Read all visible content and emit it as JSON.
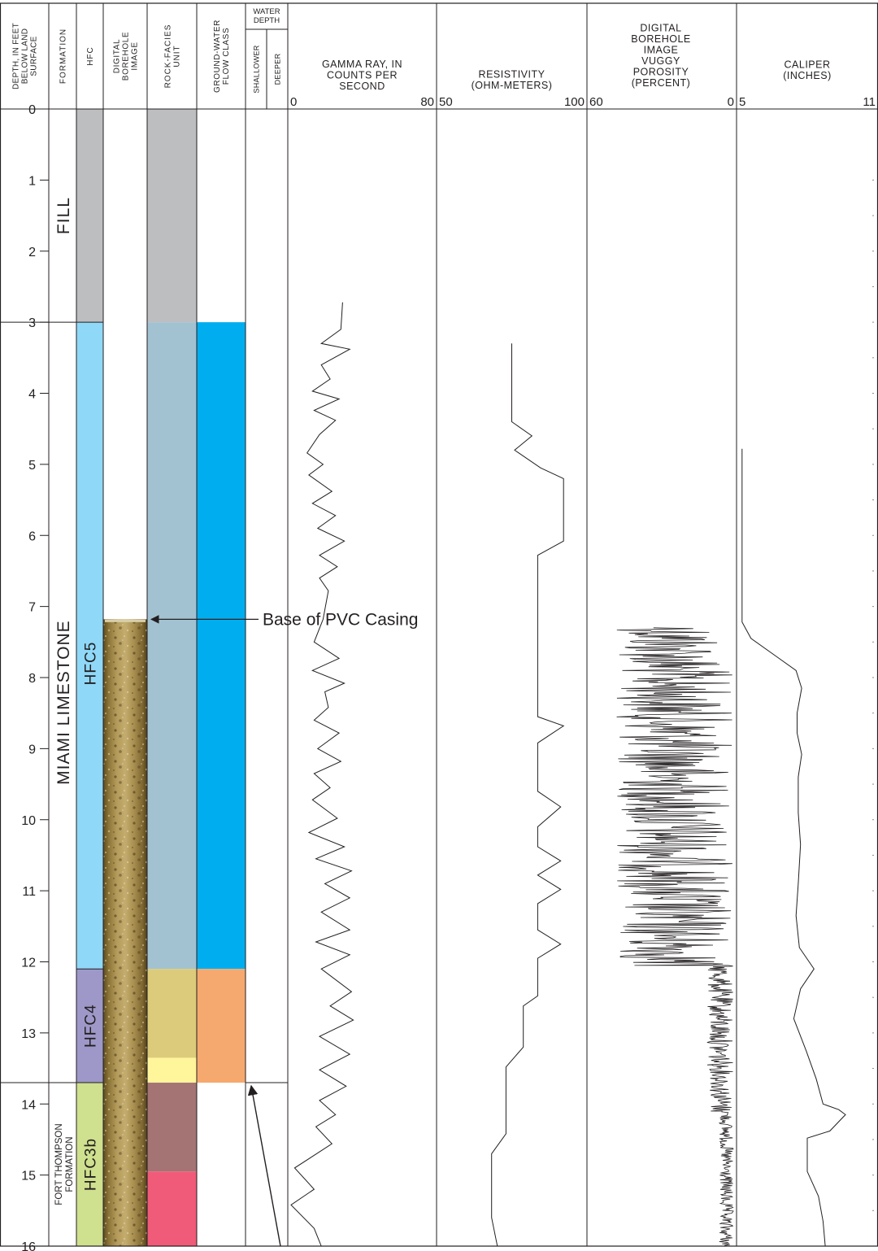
{
  "headers": {
    "depth": [
      "DEPTH, IN FEET",
      "BELOW LAND",
      "SURFACE"
    ],
    "formation": "FORMATION",
    "hfc": "HFC",
    "borehole_image": [
      "DIGITAL",
      "BOREHOLE",
      "IMAGE"
    ],
    "rock_facies": [
      "ROCK-FACIES",
      "UNIT"
    ],
    "flow_class": [
      "GROUND-WATER",
      "FLOW CLASS"
    ],
    "water_depth": [
      "WATER",
      "DEPTH"
    ],
    "water_shallower": "SHALLOWER",
    "water_deeper": "DEEPER",
    "gamma": [
      "GAMMA RAY, IN",
      "COUNTS PER",
      "SECOND"
    ],
    "resistivity": [
      "RESISTIVITY",
      "(OHM-METERS)"
    ],
    "porosity": [
      "DIGITAL",
      "BOREHOLE",
      "IMAGE",
      "VUGGY",
      "POROSITY",
      "(PERCENT)"
    ],
    "caliper": [
      "CALIPER",
      "(INCHES)"
    ]
  },
  "formations": [
    {
      "label": "FILL",
      "from": 0,
      "to": 3
    },
    {
      "label": "MIAMI LIMESTONE",
      "from": 3,
      "to": 13.7
    },
    {
      "label": "FORT THOMPSON",
      "label2": "FORMATION",
      "from": 13.7,
      "to": 16
    }
  ],
  "hfc_units": [
    {
      "label": "",
      "from": 0,
      "to": 3,
      "color": "#bcbec0"
    },
    {
      "label": "HFC5",
      "from": 3,
      "to": 12.1,
      "color": "#8fd8f7"
    },
    {
      "label": "HFC4",
      "from": 12.1,
      "to": 13.7,
      "color": "#9e98c9"
    },
    {
      "label": "HFC3b",
      "from": 13.7,
      "to": 16,
      "color": "#cfe08e"
    }
  ],
  "rock_facies": [
    {
      "from": 0,
      "to": 3,
      "color": "#bcbec0"
    },
    {
      "from": 3,
      "to": 12.1,
      "color": "#a3c2d1"
    },
    {
      "from": 12.1,
      "to": 13.35,
      "color": "#dccb7a"
    },
    {
      "from": 13.35,
      "to": 13.7,
      "color": "#fff59b"
    },
    {
      "from": 13.7,
      "to": 14.95,
      "color": "#a47474"
    },
    {
      "from": 14.95,
      "to": 16,
      "color": "#ef5b78"
    }
  ],
  "flow_class": [
    {
      "from": 3,
      "to": 12.1,
      "color": "#00aeef"
    },
    {
      "from": 12.1,
      "to": 13.7,
      "color": "#f6a96e"
    }
  ],
  "water_depth": {
    "marker_depth": 13.7
  },
  "borehole_image": {
    "from": 7.18,
    "to": 16
  },
  "annotations": {
    "casing": {
      "text": "Base of PVC Casing",
      "depth": 7.18
    }
  },
  "chart_data": {
    "type": "line",
    "y_axis": {
      "label": "DEPTH, IN FEET BELOW LAND SURFACE",
      "range": [
        0,
        16
      ],
      "ticks": [
        0,
        1,
        2,
        3,
        4,
        5,
        6,
        7,
        8,
        9,
        10,
        11,
        12,
        13,
        14,
        15,
        16
      ],
      "inverted": true
    },
    "tracks": [
      {
        "name": "GAMMA RAY, IN COUNTS PER SECOND",
        "xlim": [
          0,
          80
        ],
        "tick_labels": [
          "0",
          "80"
        ],
        "points": [
          [
            29,
            2.72
          ],
          [
            28,
            3.1
          ],
          [
            17,
            3.3
          ],
          [
            33,
            3.38
          ],
          [
            17,
            3.6
          ],
          [
            22,
            3.8
          ],
          [
            12,
            3.97
          ],
          [
            27,
            4.08
          ],
          [
            13,
            4.24
          ],
          [
            25,
            4.38
          ],
          [
            16,
            4.58
          ],
          [
            9,
            4.84
          ],
          [
            18,
            5.0
          ],
          [
            10,
            5.15
          ],
          [
            23,
            5.38
          ],
          [
            12,
            5.55
          ],
          [
            25,
            5.72
          ],
          [
            15,
            5.9
          ],
          [
            30,
            6.08
          ],
          [
            16,
            6.28
          ],
          [
            26,
            6.44
          ],
          [
            16,
            6.6
          ],
          [
            21,
            6.78
          ],
          [
            18,
            7.18
          ],
          [
            13,
            7.5
          ],
          [
            27,
            7.73
          ],
          [
            12,
            7.9
          ],
          [
            30,
            8.08
          ],
          [
            19,
            8.2
          ],
          [
            21,
            8.42
          ],
          [
            13,
            8.6
          ],
          [
            27,
            8.78
          ],
          [
            15,
            9.0
          ],
          [
            28,
            9.18
          ],
          [
            13,
            9.35
          ],
          [
            22,
            9.55
          ],
          [
            12,
            9.72
          ],
          [
            26,
            9.98
          ],
          [
            10,
            10.18
          ],
          [
            30,
            10.38
          ],
          [
            14,
            10.55
          ],
          [
            34,
            10.72
          ],
          [
            19,
            10.9
          ],
          [
            33,
            11.1
          ],
          [
            17,
            11.3
          ],
          [
            33,
            11.55
          ],
          [
            14,
            11.72
          ],
          [
            33,
            11.9
          ],
          [
            17,
            12.1
          ],
          [
            34,
            12.42
          ],
          [
            22,
            12.62
          ],
          [
            35,
            12.82
          ],
          [
            16,
            13.05
          ],
          [
            33,
            13.3
          ],
          [
            16,
            13.52
          ],
          [
            31,
            13.75
          ],
          [
            16,
            13.95
          ],
          [
            25,
            14.15
          ],
          [
            14,
            14.32
          ],
          [
            23,
            14.56
          ],
          [
            2,
            14.9
          ],
          [
            13,
            15.2
          ],
          [
            0,
            15.42
          ],
          [
            13,
            15.75
          ],
          [
            17,
            16.0
          ]
        ]
      },
      {
        "name": "RESISTIVITY (OHM-METERS)",
        "xlim": [
          50,
          100
        ],
        "tick_labels": [
          "50",
          "100"
        ],
        "points": [
          [
            75,
            3.3
          ],
          [
            75,
            4.4
          ],
          [
            82,
            4.6
          ],
          [
            76,
            4.8
          ],
          [
            85,
            5.05
          ],
          [
            93,
            5.2
          ],
          [
            93,
            6.08
          ],
          [
            84,
            6.28
          ],
          [
            84,
            8.55
          ],
          [
            93,
            8.68
          ],
          [
            84,
            8.92
          ],
          [
            84,
            9.6
          ],
          [
            92,
            9.82
          ],
          [
            84,
            10.1
          ],
          [
            84,
            10.38
          ],
          [
            92,
            10.58
          ],
          [
            84,
            10.78
          ],
          [
            92,
            10.98
          ],
          [
            84,
            11.18
          ],
          [
            84,
            11.55
          ],
          [
            92,
            11.75
          ],
          [
            84,
            11.95
          ],
          [
            84,
            12.48
          ],
          [
            79,
            12.62
          ],
          [
            79,
            13.2
          ],
          [
            73,
            13.48
          ],
          [
            73,
            14.42
          ],
          [
            68,
            14.7
          ],
          [
            68,
            15.6
          ],
          [
            70,
            16.0
          ]
        ]
      },
      {
        "name": "DIGITAL BOREHOLE IMAGE VUGGY POROSITY (PERCENT)",
        "xlim": [
          60,
          0
        ],
        "tick_labels": [
          "60",
          "0"
        ],
        "from": 7.3,
        "to": 16,
        "description_of_values": [
          {
            "depth_range": [
              7.3,
              12.05
            ],
            "min": 0,
            "max": 49
          },
          {
            "depth_range": [
              12.05,
              13.45
            ],
            "min": 0,
            "max": 11
          },
          {
            "depth_range": [
              13.45,
              14.1
            ],
            "min": 0,
            "max": 10
          },
          {
            "depth_range": [
              14.1,
              16.0
            ],
            "min": 0,
            "max": 6
          }
        ]
      },
      {
        "name": "CALIPER (INCHES)",
        "xlim": [
          5,
          11
        ],
        "tick_labels": [
          "5",
          "11"
        ],
        "points": [
          [
            5.1,
            4.78
          ],
          [
            5.1,
            7.22
          ],
          [
            5.5,
            7.45
          ],
          [
            6.7,
            7.72
          ],
          [
            7.5,
            7.9
          ],
          [
            7.75,
            8.15
          ],
          [
            7.55,
            8.5
          ],
          [
            7.55,
            8.78
          ],
          [
            7.75,
            9.08
          ],
          [
            7.6,
            9.4
          ],
          [
            7.6,
            9.9
          ],
          [
            7.7,
            10.35
          ],
          [
            7.6,
            10.9
          ],
          [
            7.5,
            11.35
          ],
          [
            7.65,
            11.8
          ],
          [
            8.3,
            12.1
          ],
          [
            7.7,
            12.38
          ],
          [
            7.4,
            12.8
          ],
          [
            7.95,
            13.25
          ],
          [
            8.4,
            13.65
          ],
          [
            8.7,
            14.0
          ],
          [
            9.4,
            14.08
          ],
          [
            9.7,
            14.15
          ],
          [
            9.0,
            14.38
          ],
          [
            8.0,
            14.48
          ],
          [
            8.0,
            14.95
          ],
          [
            8.5,
            15.3
          ],
          [
            8.7,
            15.65
          ],
          [
            8.8,
            16.0
          ]
        ]
      }
    ]
  }
}
